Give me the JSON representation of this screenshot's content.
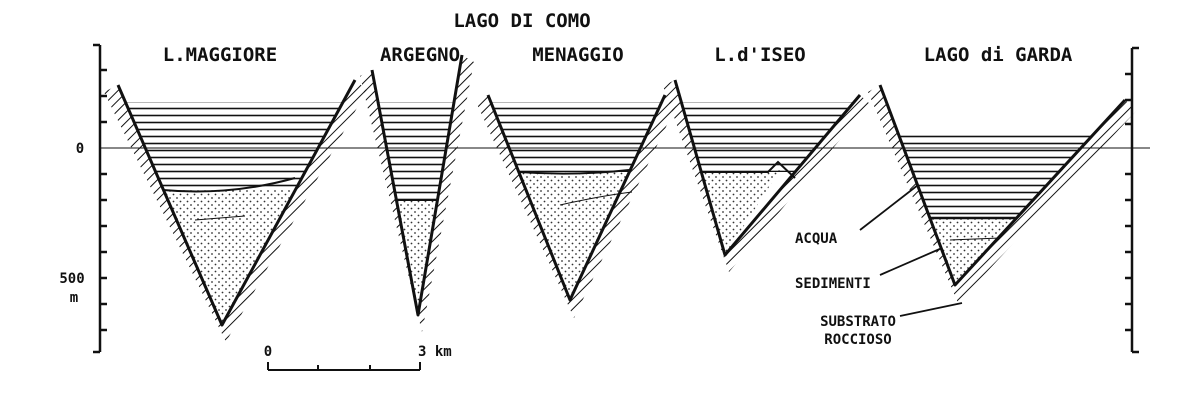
{
  "title": "LAGO DI COMO",
  "lakes": [
    {
      "label": "L.MAGGIORE"
    },
    {
      "label": "ARGEGNO"
    },
    {
      "label": "MENAGGIO"
    },
    {
      "label": "L.d'ISEO"
    },
    {
      "label": "LAGO di GARDA"
    }
  ],
  "axis": {
    "zero": "0",
    "depth": "500",
    "unit": "m"
  },
  "scale": {
    "start": "0",
    "end": "3 km"
  },
  "legend": {
    "water": "ACQUA",
    "sediment": "SEDIMENTI",
    "rock": [
      "SUBSTRATO",
      "ROCCIOSO"
    ]
  }
}
